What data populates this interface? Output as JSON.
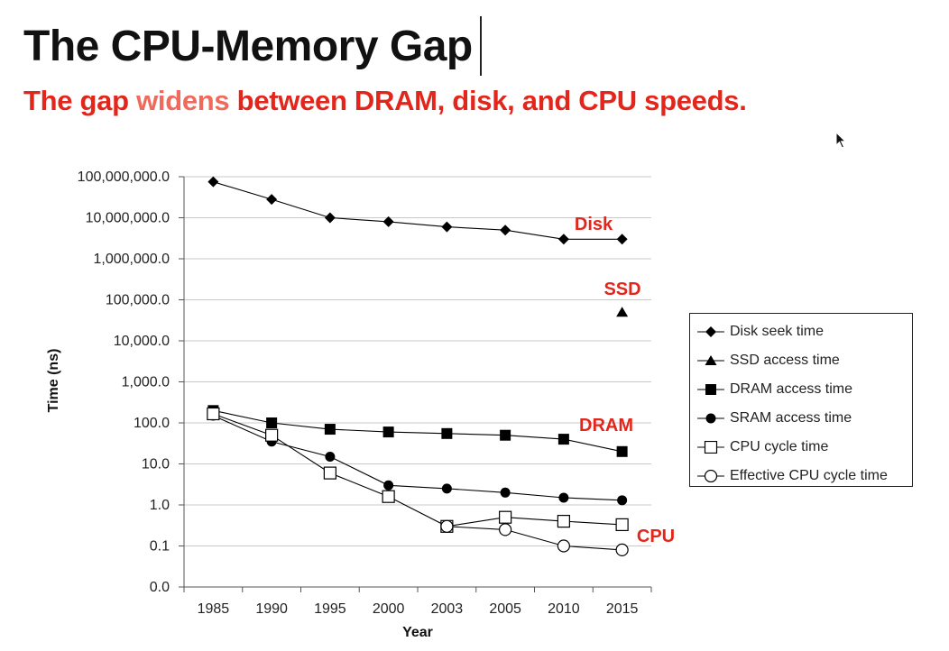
{
  "slide": {
    "title": "The CPU-Memory Gap",
    "subtitle_before": "The gap ",
    "subtitle_highlight": "widens",
    "subtitle_after": " between DRAM, disk, and CPU speeds."
  },
  "colors": {
    "title": "#111111",
    "subtitle": "#e3261c",
    "subtitle_highlight": "#ef6a5c",
    "annotation": "#e3261c",
    "series": "#000000",
    "grid": "#c8c8c8"
  },
  "chart_data": {
    "type": "line",
    "scale": "log",
    "title": "",
    "xlabel": "Year",
    "ylabel": "Time (ns)",
    "categories": [
      "1985",
      "1990",
      "1995",
      "2000",
      "2003",
      "2005",
      "2010",
      "2015"
    ],
    "y_ticks": [
      {
        "value": 0.01,
        "label": "0.0"
      },
      {
        "value": 0.1,
        "label": "0.1"
      },
      {
        "value": 1,
        "label": "1.0"
      },
      {
        "value": 10,
        "label": "10.0"
      },
      {
        "value": 100,
        "label": "100.0"
      },
      {
        "value": 1000,
        "label": "1,000.0"
      },
      {
        "value": 10000,
        "label": "10,000.0"
      },
      {
        "value": 100000,
        "label": "100,000.0"
      },
      {
        "value": 1000000,
        "label": "1,000,000.0"
      },
      {
        "value": 10000000,
        "label": "10,000,000.0"
      },
      {
        "value": 100000000,
        "label": "100,000,000.0"
      }
    ],
    "ylim": [
      0.01,
      100000000
    ],
    "grid": true,
    "legend_position": "right",
    "series": [
      {
        "name": "Disk seek time",
        "marker": "diamond",
        "values": [
          75000000,
          28000000,
          10000000,
          8000000,
          6000000,
          5000000,
          3000000,
          3000000
        ]
      },
      {
        "name": "SSD access time",
        "marker": "triangle",
        "values": [
          null,
          null,
          null,
          null,
          null,
          null,
          null,
          50000
        ]
      },
      {
        "name": "DRAM access time",
        "marker": "square",
        "values": [
          200,
          100,
          70,
          60,
          55,
          50,
          40,
          20
        ]
      },
      {
        "name": "SRAM access time",
        "marker": "circle",
        "values": [
          150,
          35,
          15,
          3,
          2.5,
          2,
          1.5,
          1.3
        ]
      },
      {
        "name": "CPU cycle time",
        "marker": "square-open",
        "values": [
          166,
          50,
          6,
          1.6,
          0.3,
          0.5,
          0.4,
          0.33
        ]
      },
      {
        "name": "Effective CPU cycle time",
        "marker": "circle-open",
        "values": [
          null,
          null,
          null,
          null,
          0.3,
          0.25,
          0.1,
          0.08
        ]
      }
    ],
    "annotations": [
      {
        "text": "Disk",
        "near": "Disk seek time"
      },
      {
        "text": "SSD",
        "near": "SSD access time"
      },
      {
        "text": "DRAM",
        "near": "DRAM access time"
      },
      {
        "text": "CPU",
        "near": "CPU cycle time"
      }
    ]
  }
}
